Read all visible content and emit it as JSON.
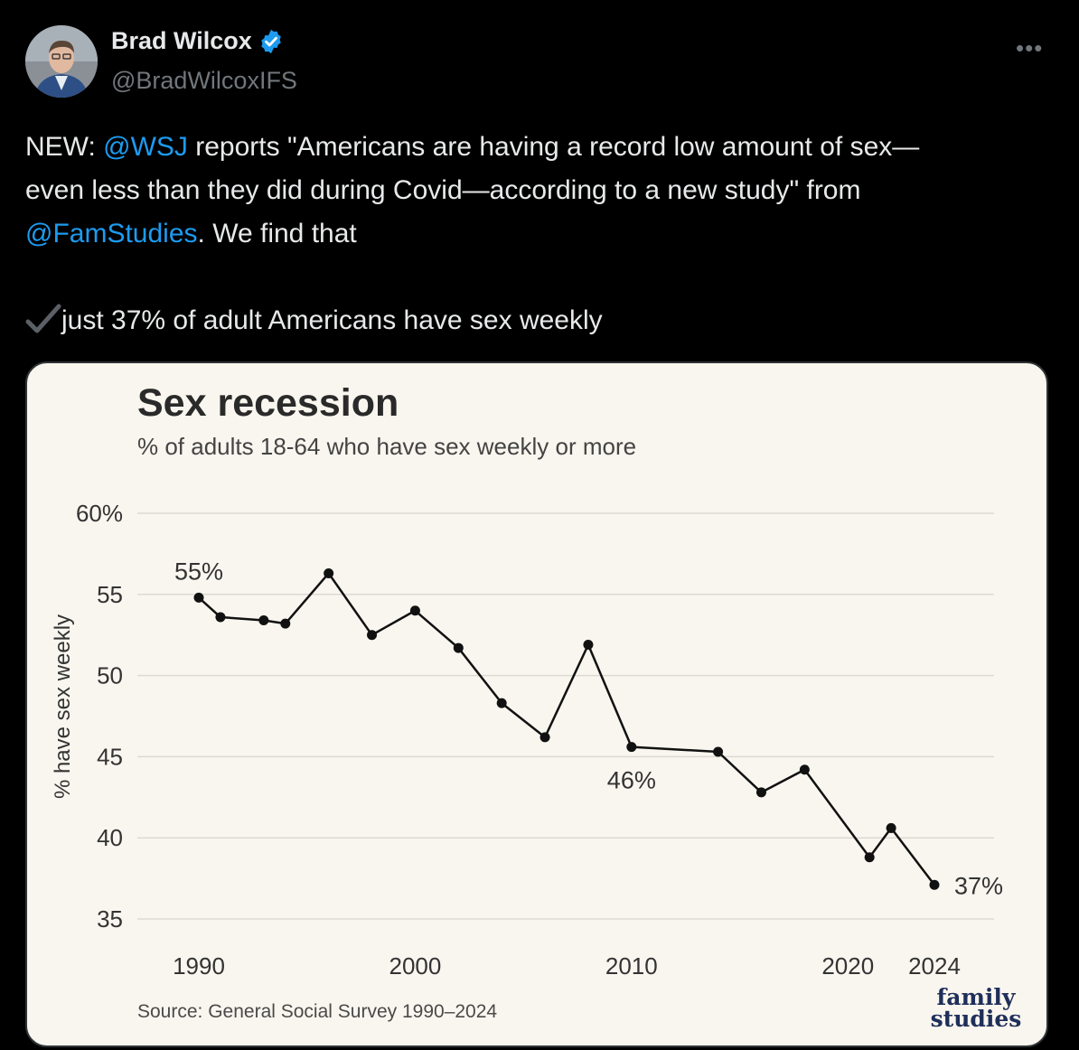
{
  "tweet": {
    "display_name": "Brad Wilcox",
    "handle": "@BradWilcoxIFS",
    "more_label": "•••",
    "line1_a": "NEW: ",
    "mention_wsj": "@WSJ",
    "line1_b": " reports \"Americans are having a record low amount of sex—",
    "line2": "even less than they did during Covid—according to a new study\" from",
    "mention_famstudies": "@FamStudies",
    "line3_b": ". We find that",
    "line4": "just 37% of adult Americans have sex weekly"
  },
  "colors": {
    "accent": "#1d9bf0",
    "background": "#000000",
    "card_bg": "#f9f6ef",
    "line": "#111111"
  },
  "icons": {
    "verified": "verified-badge-icon",
    "check": "heavy-check-mark-icon",
    "more": "more-horizontal-icon"
  },
  "chart_data": {
    "type": "line",
    "title": "Sex recession",
    "subtitle": "% of adults 18-64 who have sex weekly or more",
    "xlabel": "",
    "ylabel": "% have sex weekly",
    "ylim": [
      35,
      60
    ],
    "xlim": [
      1990,
      2024
    ],
    "yticks": [
      35,
      40,
      45,
      50,
      55,
      60
    ],
    "ytick_labels": [
      "35",
      "40",
      "45",
      "50",
      "55",
      "60%"
    ],
    "xticks": [
      1990,
      2000,
      2010,
      2020,
      2024
    ],
    "xtick_labels": [
      "1990",
      "2000",
      "2010",
      "2020",
      "2024"
    ],
    "grid": true,
    "x": [
      1990,
      1991,
      1993,
      1994,
      1996,
      1998,
      2000,
      2002,
      2004,
      2006,
      2008,
      2010,
      2014,
      2016,
      2018,
      2021,
      2022,
      2024
    ],
    "values": [
      54.8,
      53.6,
      53.4,
      53.2,
      56.3,
      52.5,
      54.0,
      51.7,
      48.3,
      46.2,
      51.9,
      45.6,
      45.3,
      42.8,
      44.2,
      38.8,
      40.6,
      37.1
    ],
    "annotations": [
      {
        "x": 1990,
        "text": "55%",
        "position": "above"
      },
      {
        "x": 2010,
        "text": "46%",
        "position": "below"
      },
      {
        "x": 2024,
        "text": "37%",
        "position": "right"
      }
    ],
    "source": "Source: General Social Survey 1990–2024",
    "logo_line1": "family",
    "logo_line2": "studies"
  }
}
